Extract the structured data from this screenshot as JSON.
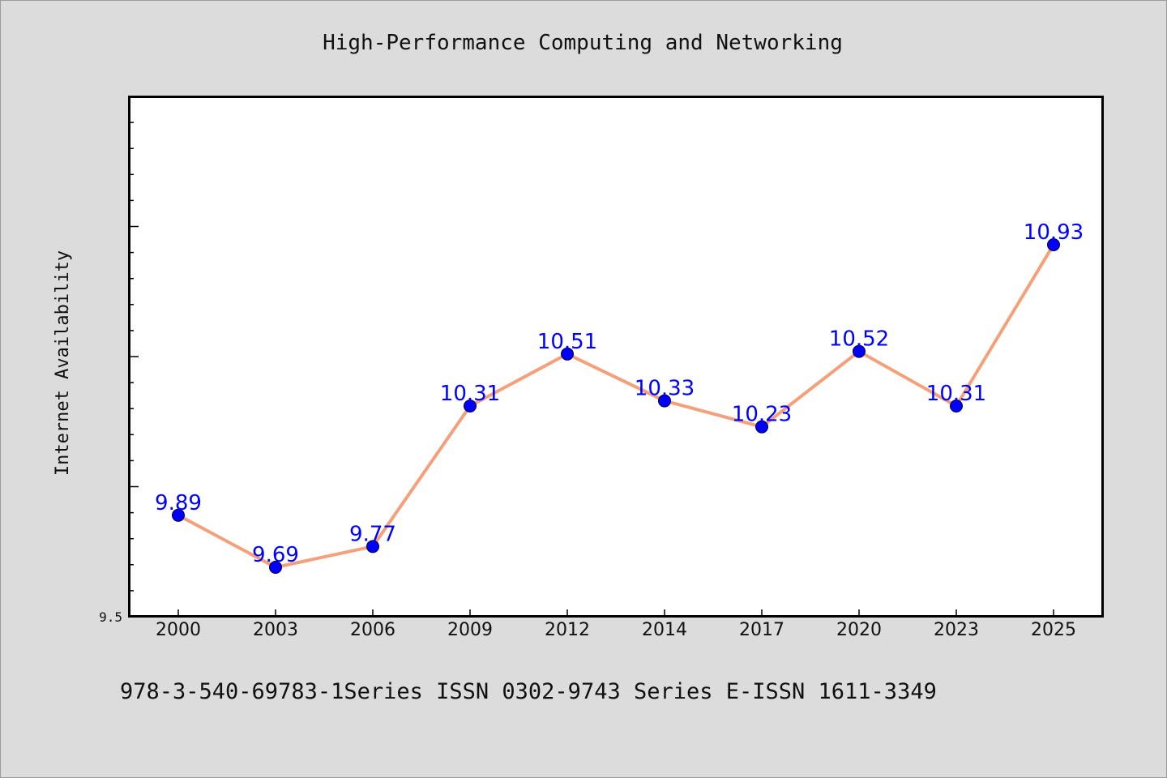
{
  "chart_data": {
    "type": "line",
    "title": "High-Performance Computing and Networking",
    "xlabel": "",
    "ylabel": "Internet Availability",
    "categories": [
      "2000",
      "2003",
      "2006",
      "2009",
      "2012",
      "2014",
      "2017",
      "2020",
      "2023",
      "2025"
    ],
    "values": [
      9.89,
      9.69,
      9.77,
      10.31,
      10.51,
      10.33,
      10.23,
      10.52,
      10.31,
      10.93
    ],
    "data_labels": [
      "9.89",
      "9.69",
      "9.77",
      "10.31",
      "10.51",
      "10.33",
      "10.23",
      "10.52",
      "10.31",
      "10.93"
    ],
    "ylim": [
      9.5,
      11.5
    ],
    "ytick_labels": [
      {
        "value": 9.5,
        "label": "9.5"
      }
    ],
    "grid": false,
    "colors": {
      "line": "#f4a07a",
      "marker": "#0000ff",
      "data_label": "#0000ff",
      "background": "#dcdcdc",
      "plot_background": "#ffffff"
    }
  },
  "footer": {
    "text": "978-3-540-69783-1Series ISSN 0302-9743 Series E-ISSN 1611-3349"
  }
}
